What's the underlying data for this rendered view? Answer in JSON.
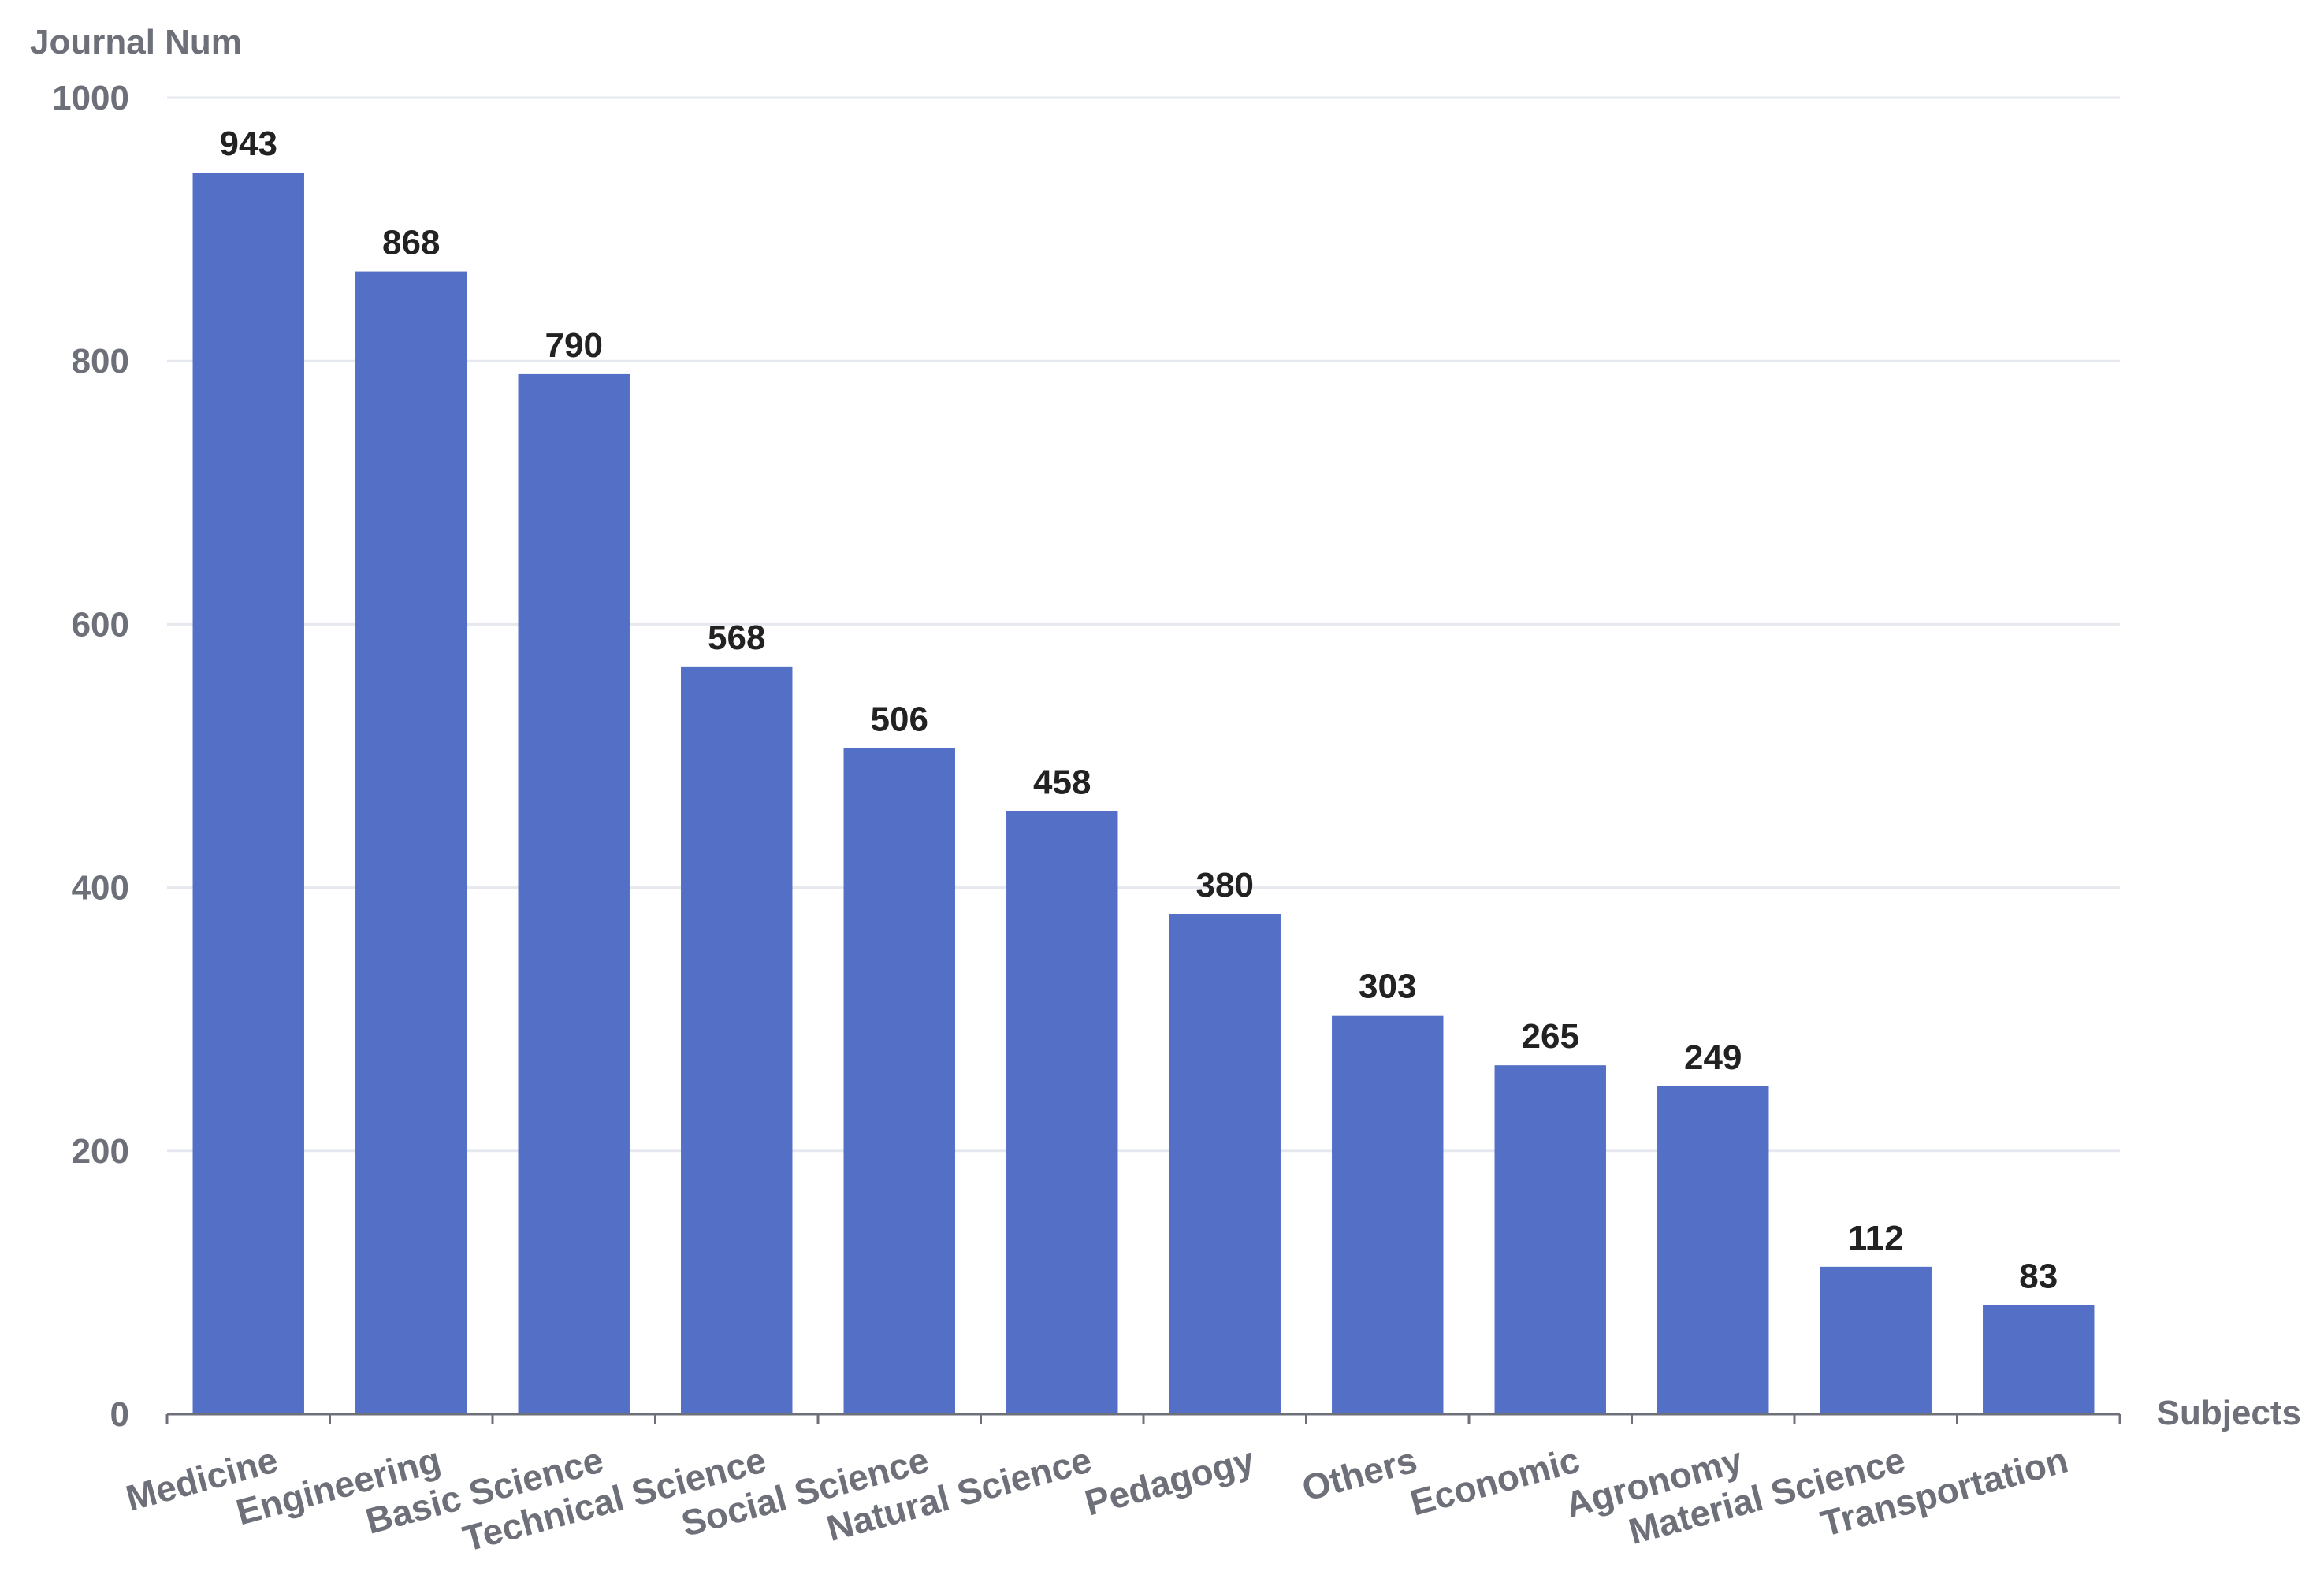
{
  "chart_data": {
    "type": "bar",
    "title": "",
    "ylabel": "Journal Num",
    "xlabel": "Subjects",
    "ylim": [
      0,
      1000
    ],
    "yticks": [
      0,
      200,
      400,
      600,
      800,
      1000
    ],
    "grid": true,
    "categories": [
      "Medicine",
      "Engineering",
      "Basic Science",
      "Technical Science",
      "Social Science",
      "Natural Science",
      "Pedagogy",
      "Others",
      "Economic",
      "Agronomy",
      "Material Science",
      "Transportation"
    ],
    "values": [
      943,
      868,
      790,
      568,
      506,
      458,
      380,
      303,
      265,
      249,
      112,
      83
    ],
    "bar_color": "#5470c6",
    "grid_color": "#e6e8ef",
    "axis_text_color": "#6e7079",
    "value_label_color": "#222222"
  }
}
